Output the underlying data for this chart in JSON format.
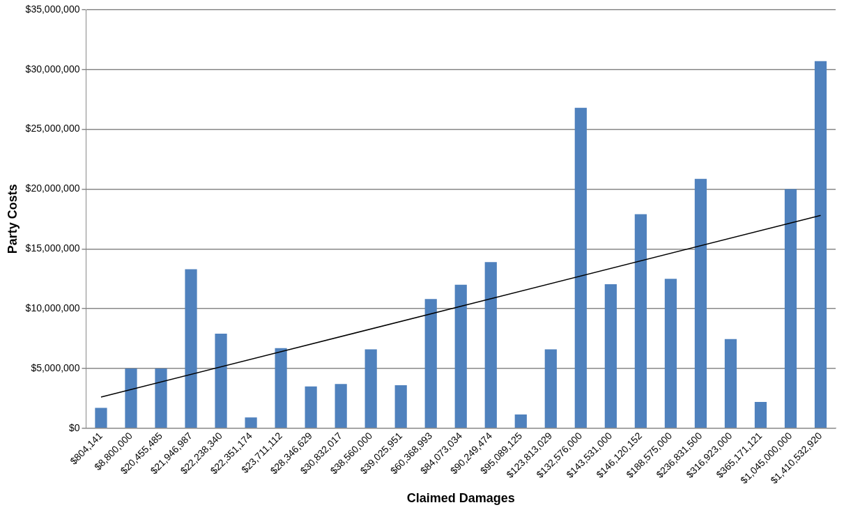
{
  "chart_data": {
    "type": "bar",
    "xlabel": "Claimed Damages",
    "ylabel": "Party Costs",
    "categories": [
      "$804,141",
      "$8,800,000",
      "$20,455,485",
      "$21,946,987",
      "$22,238,340",
      "$22,351,174",
      "$23,711,112",
      "$28,346,629",
      "$30,832,017",
      "$38,560,000",
      "$39,025,951",
      "$60,368,993",
      "$84,073,034",
      "$90,249,474",
      "$95,089,125",
      "$123,813,029",
      "$132,576,000",
      "$143,531,000",
      "$146,120,152",
      "$188,575,000",
      "$236,831,500",
      "$316,923,000",
      "$365,171,121",
      "$1,045,000,000",
      "$1,410,532,920"
    ],
    "series": [
      {
        "color": "#4f81bd",
        "values": [
          1700000,
          5000000,
          5000000,
          13300000,
          7900000,
          900000,
          6700000,
          3500000,
          3700000,
          6600000,
          3600000,
          10800000,
          12000000,
          13900000,
          1150000,
          6600000,
          26800000,
          12050000,
          17900000,
          12500000,
          20850000,
          7450000,
          2200000,
          20000000,
          30700000
        ]
      },
      {
        "type": "line",
        "color": "#000000",
        "x": [
          "$804,141",
          "$1,410,532,920"
        ],
        "values": [
          2600000,
          17800000
        ]
      }
    ],
    "ylim": [
      0,
      35000000
    ],
    "yticks": [
      {
        "value": 0,
        "label": "$0"
      },
      {
        "value": 5000000,
        "label": "$5,000,000"
      },
      {
        "value": 10000000,
        "label": "$10,000,000"
      },
      {
        "value": 15000000,
        "label": "$15,000,000"
      },
      {
        "value": 20000000,
        "label": "$20,000,000"
      },
      {
        "value": 25000000,
        "label": "$25,000,000"
      },
      {
        "value": 30000000,
        "label": "$30,000,000"
      },
      {
        "value": 35000000,
        "label": "$35,000,000"
      }
    ],
    "grid": "y",
    "legend": false,
    "marker": "none",
    "line_style": "solid"
  }
}
